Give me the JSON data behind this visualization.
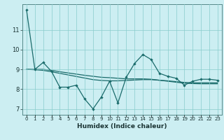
{
  "title": "",
  "xlabel": "Humidex (Indice chaleur)",
  "ylabel": "",
  "bg_color": "#cceef2",
  "grid_color": "#88cccc",
  "line_color": "#1a6b6b",
  "x_data": [
    0,
    1,
    2,
    3,
    4,
    5,
    6,
    7,
    8,
    9,
    10,
    11,
    12,
    13,
    14,
    15,
    16,
    17,
    18,
    19,
    20,
    21,
    22,
    23
  ],
  "y_main": [
    12.0,
    9.0,
    9.35,
    8.9,
    8.1,
    8.1,
    8.2,
    7.5,
    7.0,
    7.6,
    8.4,
    7.3,
    8.6,
    9.3,
    9.75,
    9.5,
    8.8,
    8.65,
    8.55,
    8.2,
    8.4,
    8.5,
    8.5,
    8.45
  ],
  "y_smooth1": [
    9.0,
    9.0,
    9.0,
    8.95,
    8.88,
    8.82,
    8.76,
    8.7,
    8.65,
    8.6,
    8.58,
    8.55,
    8.52,
    8.52,
    8.52,
    8.5,
    8.45,
    8.4,
    8.35,
    8.3,
    8.28,
    8.27,
    8.27,
    8.27
  ],
  "y_smooth2": [
    9.0,
    8.98,
    8.95,
    8.88,
    8.8,
    8.72,
    8.64,
    8.56,
    8.48,
    8.44,
    8.42,
    8.42,
    8.44,
    8.46,
    8.48,
    8.48,
    8.45,
    8.42,
    8.38,
    8.34,
    8.32,
    8.32,
    8.32,
    8.32
  ],
  "ylim": [
    6.7,
    12.3
  ],
  "yticks": [
    7,
    8,
    9,
    10,
    11
  ],
  "xlim": [
    -0.5,
    23.5
  ]
}
